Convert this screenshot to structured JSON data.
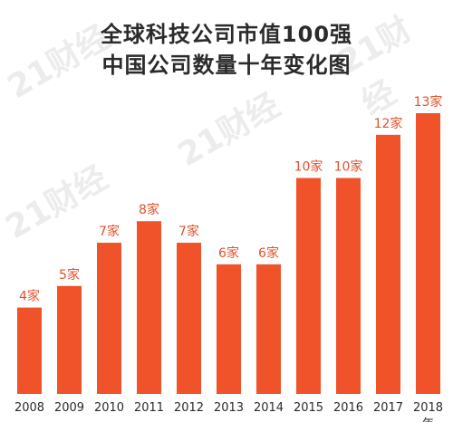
{
  "watermark": "21财经",
  "chart_data": {
    "type": "bar",
    "title": "全球科技公司市值100强",
    "subtitle": "中国公司数量十年变化图",
    "categories": [
      "2008",
      "2009",
      "2010",
      "2011",
      "2012",
      "2013",
      "2014",
      "2015",
      "2016",
      "2017",
      "2018"
    ],
    "x_trailing_text": "年",
    "values": [
      4,
      5,
      7,
      8,
      7,
      6,
      6,
      10,
      10,
      12,
      13
    ],
    "data_labels": [
      "4家",
      "5家",
      "7家",
      "8家",
      "7家",
      "6家",
      "6家",
      "10家",
      "10家",
      "12家",
      "13家"
    ],
    "ylim": [
      0,
      13
    ],
    "grid": false,
    "bar_color": "#f0522a",
    "label_color": "#e2522c"
  }
}
